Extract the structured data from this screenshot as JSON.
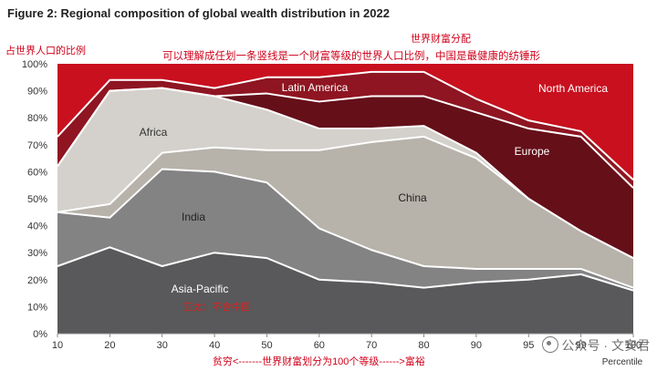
{
  "chart_data": {
    "type": "area",
    "stacked": true,
    "title": "Figure 2: Regional composition of global wealth distribution in 2022",
    "xlabel": "Percentile",
    "ylabel": "",
    "x": [
      10,
      20,
      30,
      40,
      50,
      60,
      70,
      80,
      90,
      95,
      99,
      100
    ],
    "xlim": [
      10,
      100
    ],
    "ylim": [
      0,
      100
    ],
    "x_ticks": [
      "10",
      "20",
      "30",
      "40",
      "50",
      "60",
      "70",
      "80",
      "90",
      "95",
      "99",
      "100"
    ],
    "y_ticks": [
      "0%",
      "10%",
      "20%",
      "30%",
      "40%",
      "50%",
      "60%",
      "70%",
      "80%",
      "90%",
      "100%"
    ],
    "series": [
      {
        "name": "Asia-Pacific",
        "color": "#59585a",
        "values": [
          25,
          32,
          25,
          30,
          28,
          20,
          19,
          17,
          19,
          20,
          22,
          16
        ]
      },
      {
        "name": "India",
        "color": "#848384",
        "values": [
          20,
          11,
          36,
          30,
          28,
          19,
          12,
          8,
          5,
          4,
          2,
          1
        ]
      },
      {
        "name": "China",
        "color": "#b7b2aa",
        "values": [
          0,
          5,
          6,
          9,
          12,
          29,
          40,
          48,
          41,
          26,
          14,
          11
        ]
      },
      {
        "name": "Africa",
        "color": "#d4d1cc",
        "values": [
          17,
          42,
          24,
          19,
          15,
          8,
          5,
          4,
          2,
          0,
          0,
          0
        ]
      },
      {
        "name": "Europe",
        "color": "#650f19",
        "values": [
          0,
          0,
          0,
          0,
          6,
          10,
          12,
          11,
          15,
          26,
          35,
          26
        ]
      },
      {
        "name": "Latin America",
        "color": "#8e1521",
        "values": [
          11,
          4,
          3,
          3,
          6,
          9,
          9,
          9,
          5,
          3,
          2,
          3
        ]
      },
      {
        "name": "North America",
        "color": "#c8101e",
        "values": [
          27,
          6,
          6,
          9,
          5,
          5,
          3,
          3,
          13,
          21,
          25,
          43
        ]
      }
    ]
  },
  "labels": {
    "africa": "Africa",
    "india": "India",
    "asia_pacific": "Asia-Pacific",
    "china": "China",
    "latin_america": "Latin America",
    "europe": "Europe",
    "north_america": "North America"
  },
  "annotations": {
    "y_note": "占世界人口的比例",
    "top_note": "世界财富分配",
    "main_note": "可以理解成任划一条竖线是一个财富等级的世界人口比例，中国是最健康的纺锤形",
    "inner_note": "亚太：不含中国",
    "bottom_note": "贫穷<-------世界财富划分为100个等级------>富裕"
  },
  "watermark": "公众号 · 文安君"
}
